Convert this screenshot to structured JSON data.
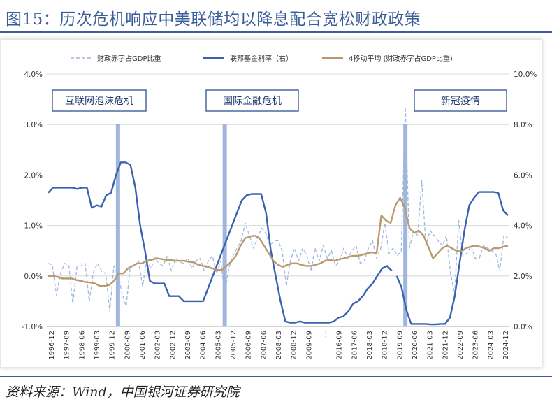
{
  "figure": {
    "title": "图15：历次危机响应中美联储均以降息配合宽松财政政策",
    "source": "资料来源：Wind，中国银河证券研究院"
  },
  "chart_data": {
    "type": "line",
    "title": "历次危机响应中美联储均以降息配合宽松财政政策",
    "legend": [
      "财政赤字占GDP比重",
      "联邦基金利率（右）",
      "4移动平均 (财政赤字占GDP比重)"
    ],
    "left_axis": {
      "ticks": [
        "4.0%",
        "3.0%",
        "2.0%",
        "1.0%",
        "0.0%",
        "-1.0%"
      ],
      "range": [
        -1.0,
        4.0
      ]
    },
    "right_axis": {
      "ticks": [
        "10.0%",
        "8.0%",
        "6.0%",
        "4.0%",
        "2.0%",
        "0.0%"
      ],
      "range": [
        0,
        10
      ]
    },
    "x_tick_labels": [
      "1996-12",
      "1997-09",
      "1998-06",
      "1999-03",
      "1999-12",
      "2000-09",
      "2001-06",
      "2002-03",
      "2002-12",
      "2003-09",
      "2004-06",
      "2005-03",
      "2005-12",
      "2006-09",
      "2007-06",
      "2008-03",
      "2008-12",
      "2009-09",
      "…",
      "2016-09",
      "2017-06",
      "2018-03",
      "2018-12",
      "2019-09",
      "2020-06",
      "2021-03",
      "2021-12",
      "2022-09",
      "2023-06",
      "2024-03",
      "2024-12"
    ],
    "crises": [
      {
        "label": "互联网泡沫危机",
        "marker_index": 17
      },
      {
        "label": "国际金融危机",
        "marker_index": 43
      },
      {
        "label": "新冠疫情",
        "marker_index": 87
      }
    ],
    "series": [
      {
        "name": "财政赤字占GDP比重",
        "axis": "left",
        "color": "#9fb6de",
        "values": [
          0.25,
          0.22,
          -0.38,
          0.05,
          0.25,
          0.22,
          -0.55,
          0.18,
          0.2,
          0.25,
          -0.5,
          0.07,
          0.25,
          0.1,
          0.05,
          -0.7,
          0.2,
          0.05,
          -0.35,
          -0.6,
          0.2,
          0.2,
          0.3,
          -0.2,
          0.3,
          0.15,
          0.35,
          0.25,
          0.2,
          0.4,
          0.1,
          0.35,
          0.28,
          0.25,
          0.35,
          0.15,
          0.3,
          0.35,
          0.1,
          0.3,
          0.4,
          0.05,
          0.3,
          -0.35,
          0.15,
          0.4,
          0.55,
          0.7,
          1.05,
          0.8,
          0.55,
          0.75,
          0.95,
          0.85,
          0.6,
          0.7,
          0.7,
          0.5,
          -0.2,
          0.3,
          0.55,
          0.3,
          0.55,
          0.4,
          0.1,
          0.55,
          0.3,
          0.6,
          0.35,
          0.5,
          0.2,
          0.3,
          0.55,
          0.35,
          0.5,
          0.6,
          0.25,
          0.3,
          0.55,
          0.7,
          0.35,
          0.55,
          1.05,
          0.45,
          0.55,
          0.4,
          0.5,
          3.35,
          0.55,
          0.9,
          0.8,
          1.9,
          0.6,
          0.9,
          0.8,
          0.7,
          0.6,
          0.8,
          0.05,
          -0.35,
          1.1,
          0.4,
          0.45,
          0.6,
          0.35,
          0.35,
          0.6,
          0.55,
          0.5,
          0.45,
          0.1,
          0.8,
          0.75
        ]
      },
      {
        "name": "联邦基金利率（右）",
        "axis": "right",
        "color": "#3a62b0",
        "values": [
          5.3,
          5.5,
          5.5,
          5.5,
          5.5,
          5.5,
          5.45,
          5.5,
          5.5,
          4.7,
          4.8,
          4.75,
          5.2,
          5.3,
          6.0,
          6.5,
          6.5,
          6.4,
          5.5,
          4.0,
          3.0,
          1.8,
          1.7,
          1.7,
          1.7,
          1.2,
          1.2,
          1.2,
          1.0,
          1.0,
          1.0,
          1.0,
          1.0,
          1.5,
          2.0,
          2.5,
          3.0,
          3.5,
          4.0,
          4.5,
          5.0,
          5.2,
          5.25,
          5.25,
          5.25,
          4.5,
          3.0,
          2.0,
          1.0,
          0.2,
          0.15,
          0.15,
          0.2,
          0.15,
          0.15,
          0.15,
          0.15,
          0.15,
          0.15,
          0.2,
          0.35,
          0.4,
          0.6,
          0.9,
          1.0,
          1.2,
          1.5,
          1.7,
          2.0,
          2.3,
          2.4,
          2.2,
          2.0,
          1.55,
          0.65,
          0.1,
          0.1,
          0.1,
          0.1,
          0.08,
          0.08,
          0.1,
          0.1,
          0.35,
          1.2,
          2.5,
          3.8,
          4.8,
          5.1,
          5.33,
          5.33,
          5.33,
          5.33,
          5.3,
          4.6,
          4.4
        ]
      },
      {
        "name": "4移动平均 (财政赤字占GDP比重)",
        "axis": "left",
        "color": "#b89a6c",
        "values": [
          0.0,
          0.0,
          -0.02,
          -0.05,
          -0.05,
          -0.05,
          -0.08,
          -0.1,
          -0.12,
          -0.13,
          -0.15,
          -0.2,
          -0.2,
          -0.18,
          -0.1,
          0.05,
          0.05,
          0.15,
          0.2,
          0.25,
          0.25,
          0.3,
          0.32,
          0.35,
          0.34,
          0.32,
          0.32,
          0.3,
          0.3,
          0.3,
          0.28,
          0.27,
          0.22,
          0.2,
          0.18,
          0.15,
          0.12,
          0.12,
          0.2,
          0.28,
          0.4,
          0.6,
          0.75,
          0.78,
          0.8,
          0.75,
          0.6,
          0.45,
          0.3,
          0.22,
          0.18,
          0.22,
          0.25,
          0.25,
          0.22,
          0.2,
          0.2,
          0.22,
          0.25,
          0.3,
          0.32,
          0.3,
          0.33,
          0.35,
          0.38,
          0.4,
          0.4,
          0.42,
          0.45,
          0.47,
          0.45,
          1.2,
          1.1,
          1.05,
          1.4,
          1.55,
          1.35,
          0.95,
          0.85,
          0.9,
          0.8,
          0.58,
          0.35,
          0.45,
          0.55,
          0.6,
          0.55,
          0.5,
          0.48,
          0.55,
          0.58,
          0.6,
          0.58,
          0.55,
          0.5,
          0.55,
          0.55,
          0.58,
          0.6
        ]
      }
    ]
  }
}
